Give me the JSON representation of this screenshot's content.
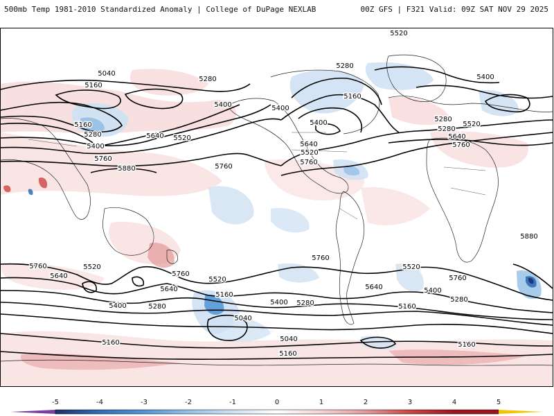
{
  "header": {
    "left_title": "500mb Temp 1981-2010 Standardized Anomaly | College of DuPage NEXLAB",
    "right_title": "00Z GFS | F321 Valid: 09Z SAT NOV 29 2025"
  },
  "map": {
    "contour_labels": [
      "5040",
      "5160",
      "5280",
      "5400",
      "5520",
      "5640",
      "5760",
      "5880"
    ],
    "labels": [
      {
        "text": "5040"
      },
      {
        "text": "5160"
      },
      {
        "text": "5280"
      },
      {
        "text": "5400"
      },
      {
        "text": "5520"
      },
      {
        "text": "5160"
      },
      {
        "text": "5280"
      },
      {
        "text": "5400"
      },
      {
        "text": "5640"
      },
      {
        "text": "5520"
      },
      {
        "text": "5760"
      },
      {
        "text": "5880"
      },
      {
        "text": "5400"
      },
      {
        "text": "5760"
      },
      {
        "text": "5280"
      },
      {
        "text": "5160"
      },
      {
        "text": "5400"
      },
      {
        "text": "5640"
      },
      {
        "text": "5520"
      },
      {
        "text": "5760"
      },
      {
        "text": "5400"
      },
      {
        "text": "5280"
      },
      {
        "text": "5280"
      },
      {
        "text": "5520"
      },
      {
        "text": "5640"
      },
      {
        "text": "5760"
      },
      {
        "text": "5880"
      },
      {
        "text": "5760"
      },
      {
        "text": "5640"
      },
      {
        "text": "5520"
      },
      {
        "text": "5760"
      },
      {
        "text": "5640"
      },
      {
        "text": "5400"
      },
      {
        "text": "5280"
      },
      {
        "text": "5520"
      },
      {
        "text": "5160"
      },
      {
        "text": "5040"
      },
      {
        "text": "5400"
      },
      {
        "text": "5280"
      },
      {
        "text": "5760"
      },
      {
        "text": "5520"
      },
      {
        "text": "5640"
      },
      {
        "text": "5760"
      },
      {
        "text": "5400"
      },
      {
        "text": "5280"
      },
      {
        "text": "5160"
      },
      {
        "text": "5040"
      },
      {
        "text": "5160"
      },
      {
        "text": "5160"
      },
      {
        "text": "5160"
      },
      {
        "text": "5400"
      },
      {
        "text": "5520"
      },
      {
        "text": "5400"
      },
      {
        "text": "5280"
      }
    ]
  },
  "colorbar": {
    "ticks": [
      "-5",
      "-4",
      "-3",
      "-2",
      "-1",
      "0",
      "1",
      "2",
      "3",
      "4",
      "5"
    ],
    "colors": {
      "min_arrow": "#7a3fa0",
      "c_n5": "#1f2e6e",
      "c_n4": "#2e6db6",
      "c_n3": "#4f95d6",
      "c_n2": "#94bfe6",
      "c_n1": "#cfe1f3",
      "c_0": "#ffffff",
      "c_1": "#f6d2d2",
      "c_2": "#e39a9a",
      "c_3": "#cf4242",
      "c_4": "#a1141e",
      "max_arrow": "#f2c500"
    }
  }
}
